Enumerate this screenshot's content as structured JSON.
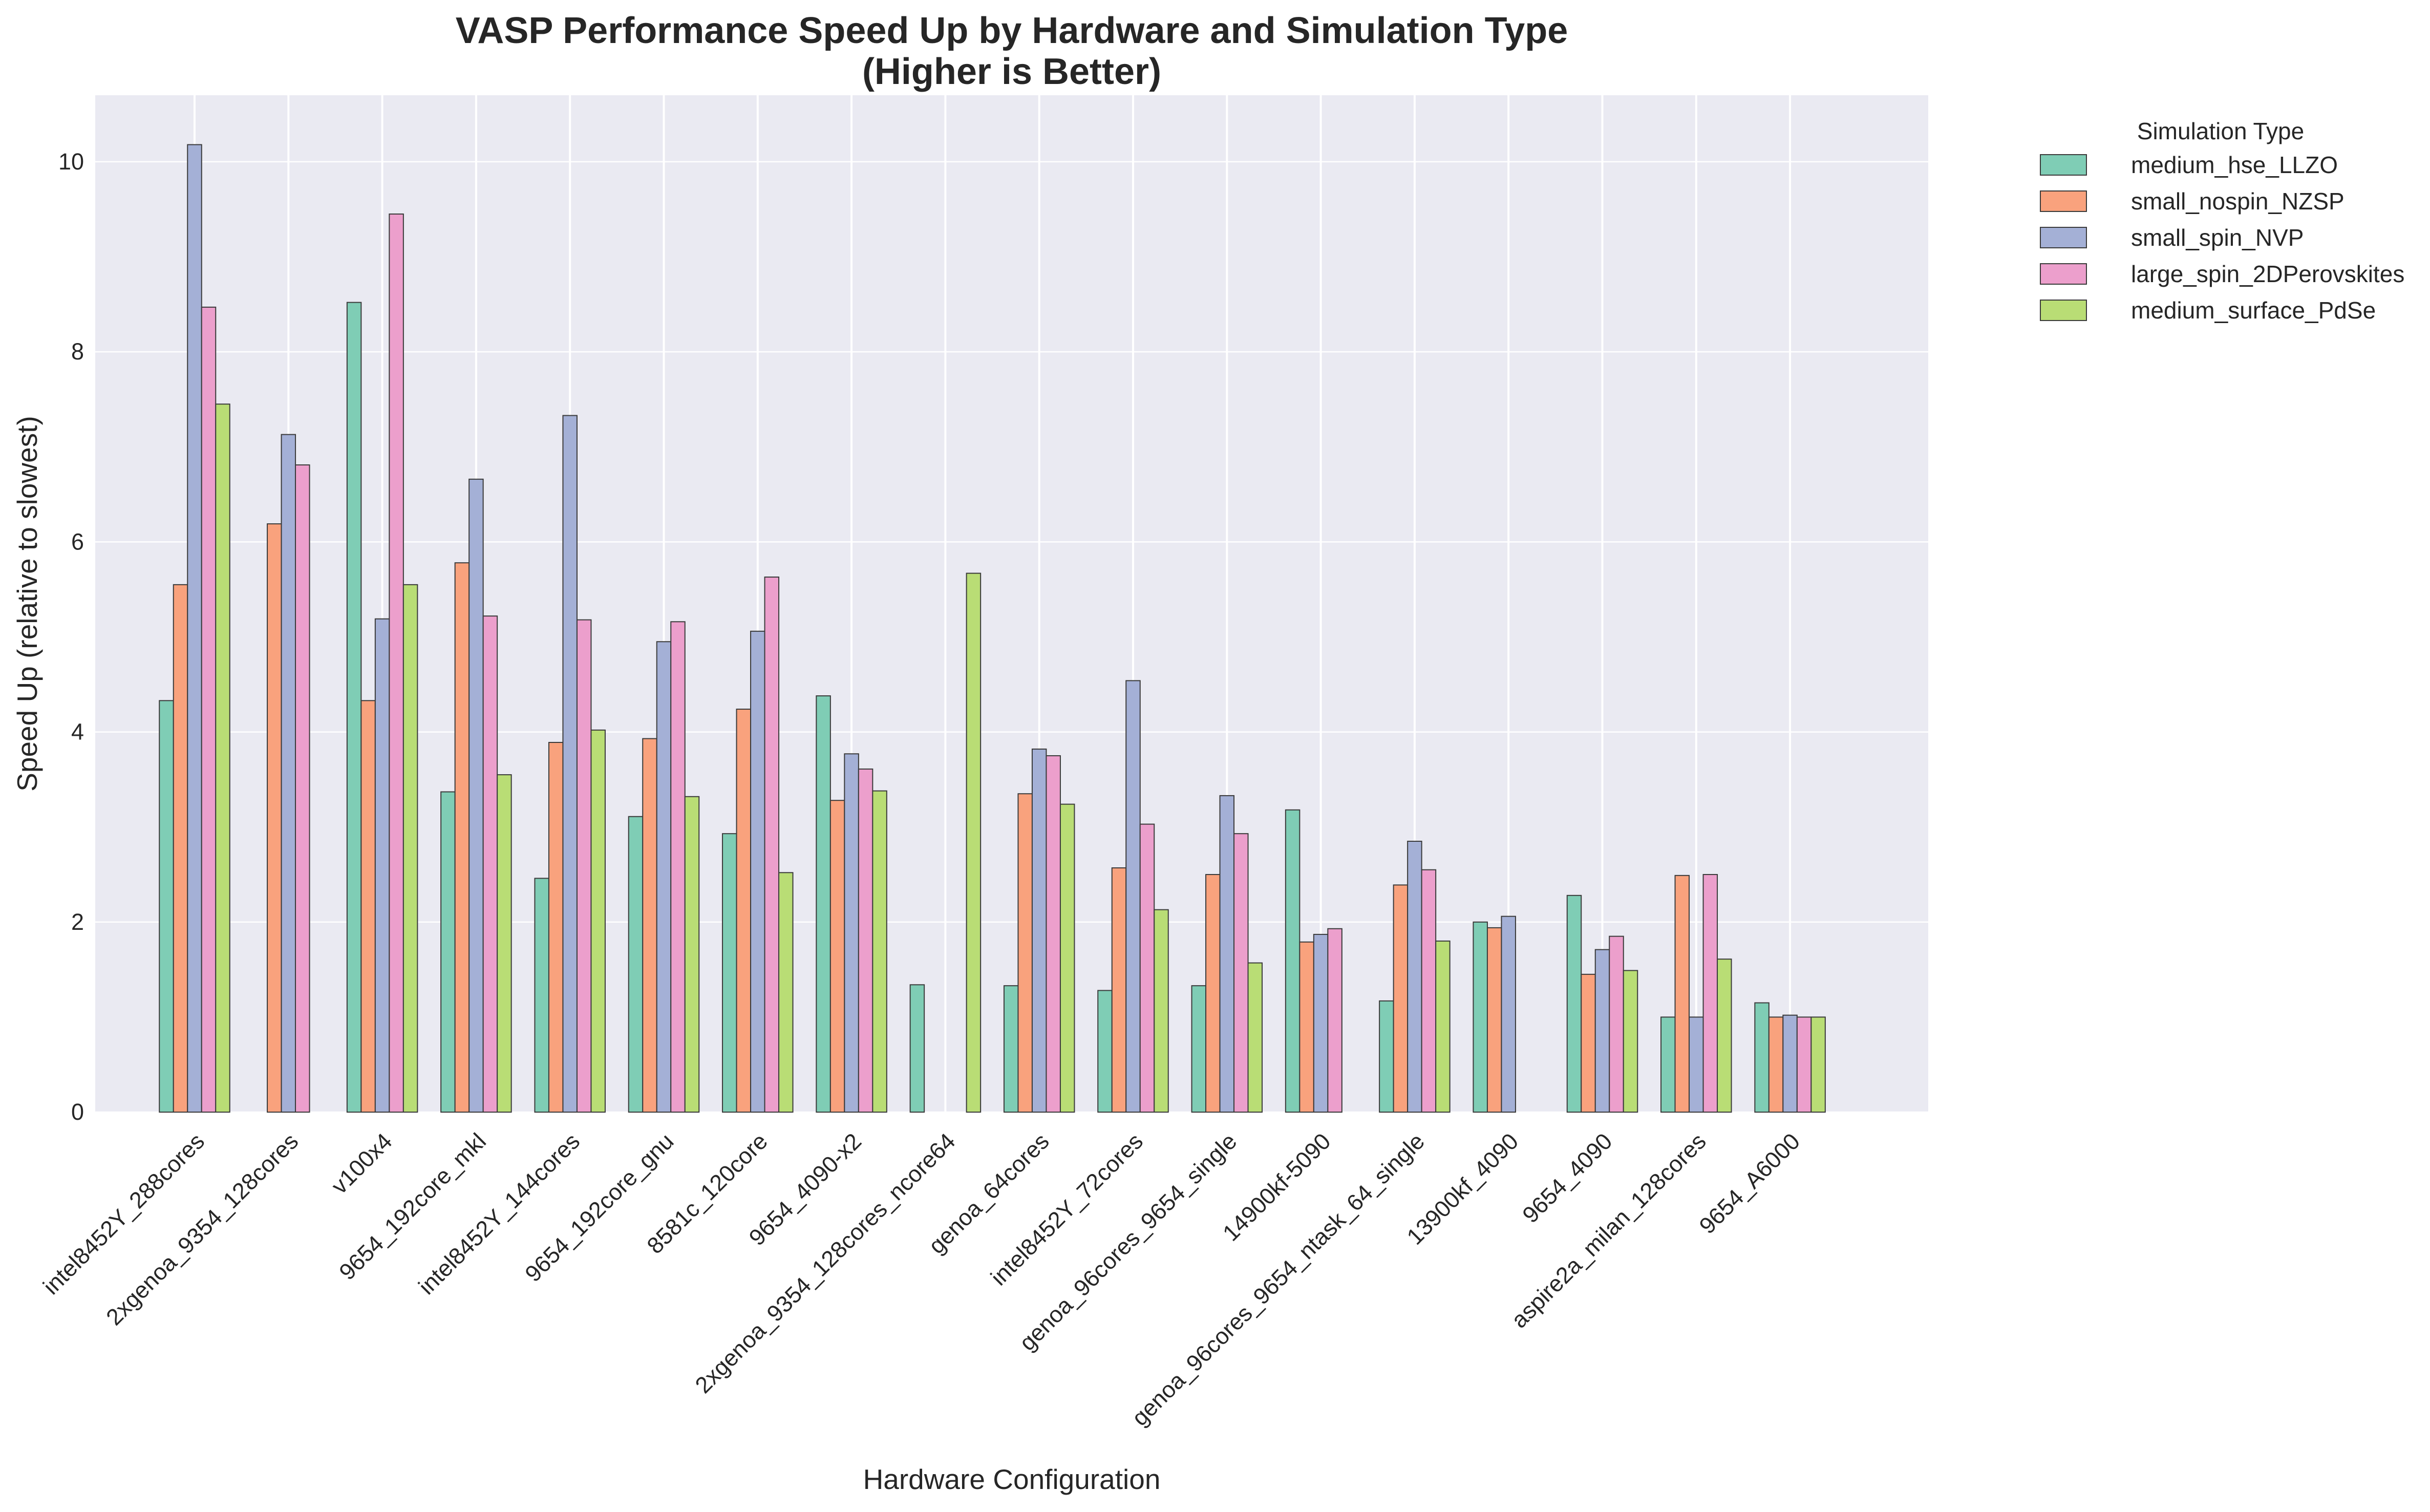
{
  "chart_data": {
    "type": "bar",
    "title": "VASP Performance Speed Up by Hardware and Simulation Type",
    "subtitle": "(Higher is Better)",
    "xlabel": "Hardware Configuration",
    "ylabel": "Speed Up (relative to slowest)",
    "ylim": [
      0,
      10.7
    ],
    "yticks": [
      0,
      2,
      4,
      6,
      8,
      10
    ],
    "grid": true,
    "legend": {
      "title": "Simulation Type",
      "position": "outside-top-right"
    },
    "categories": [
      "intel8452Y_288cores",
      "2xgenoa_9354_128cores",
      "v100x4",
      "9654_192core_mkl",
      "intel8452Y_144cores",
      "9654_192core_gnu",
      "8581c_120core",
      "9654_4090-x2",
      "2xgenoa_9354_128cores_ncore64",
      "genoa_64cores",
      "intel8452Y_72cores",
      "genoa_96cores_9654_single",
      "14900kf-5090",
      "genoa_96cores_9654_ntask_64_single",
      "13900kf_4090",
      "9654_4090",
      "aspire2a_milan_128cores",
      "9654_A6000"
    ],
    "series": [
      {
        "name": "medium_hse_LLZO",
        "color": "#7fcdb5",
        "values": [
          4.33,
          null,
          8.52,
          3.37,
          2.46,
          3.11,
          2.93,
          4.38,
          1.34,
          1.33,
          1.28,
          1.33,
          3.18,
          1.17,
          2.0,
          2.28,
          1.0,
          1.15
        ]
      },
      {
        "name": "small_nospin_NZSP",
        "color": "#f9a27d",
        "values": [
          5.55,
          6.19,
          4.33,
          5.78,
          3.89,
          3.93,
          4.24,
          3.28,
          null,
          3.35,
          2.57,
          2.5,
          1.79,
          2.39,
          1.94,
          1.45,
          2.49,
          1.0
        ]
      },
      {
        "name": "small_spin_NVP",
        "color": "#a4b0d6",
        "values": [
          10.18,
          7.13,
          5.19,
          6.66,
          7.33,
          4.95,
          5.06,
          3.77,
          null,
          3.82,
          4.54,
          3.33,
          1.87,
          2.85,
          2.06,
          1.71,
          1.0,
          1.02
        ]
      },
      {
        "name": "large_spin_2DPerovskites",
        "color": "#ec9fcc",
        "values": [
          8.47,
          6.81,
          9.45,
          5.22,
          5.18,
          5.16,
          5.63,
          3.61,
          null,
          3.75,
          3.03,
          2.93,
          1.93,
          2.55,
          null,
          1.85,
          2.5,
          1.0
        ]
      },
      {
        "name": "medium_surface_PdSe",
        "color": "#b9dd75",
        "values": [
          7.45,
          null,
          5.55,
          3.55,
          4.02,
          3.32,
          2.52,
          3.38,
          5.67,
          3.24,
          2.13,
          1.57,
          null,
          1.8,
          null,
          1.49,
          1.61,
          1.0
        ]
      }
    ]
  }
}
